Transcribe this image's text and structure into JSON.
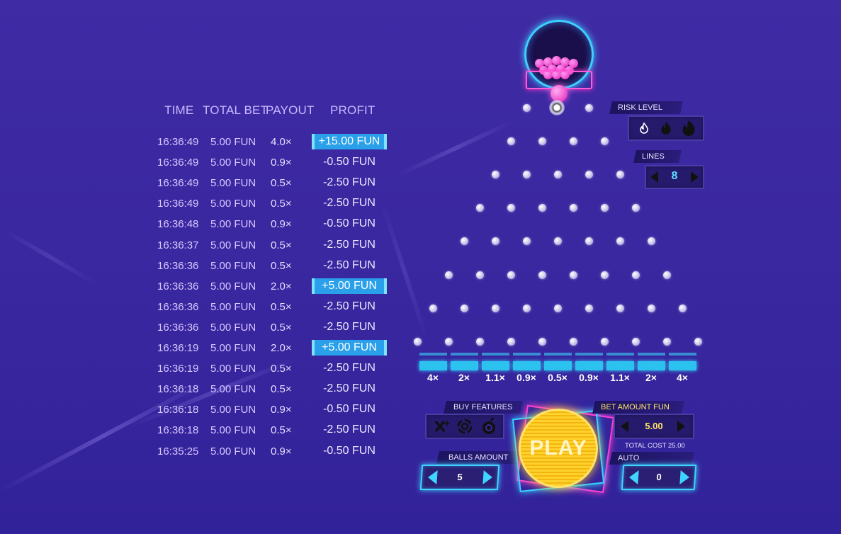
{
  "history": {
    "headers": {
      "time": "TIME",
      "total_bet": "TOTAL BET",
      "payout": "PAYOUT",
      "profit": "PROFIT"
    },
    "rows": [
      {
        "time": "16:36:49",
        "bet": "5.00 FUN",
        "payout": "4.0×",
        "profit": "+15.00 FUN",
        "win": true
      },
      {
        "time": "16:36:49",
        "bet": "5.00 FUN",
        "payout": "0.9×",
        "profit": "-0.50 FUN",
        "win": false
      },
      {
        "time": "16:36:49",
        "bet": "5.00 FUN",
        "payout": "0.5×",
        "profit": "-2.50 FUN",
        "win": false
      },
      {
        "time": "16:36:49",
        "bet": "5.00 FUN",
        "payout": "0.5×",
        "profit": "-2.50 FUN",
        "win": false
      },
      {
        "time": "16:36:48",
        "bet": "5.00 FUN",
        "payout": "0.9×",
        "profit": "-0.50 FUN",
        "win": false
      },
      {
        "time": "16:36:37",
        "bet": "5.00 FUN",
        "payout": "0.5×",
        "profit": "-2.50 FUN",
        "win": false
      },
      {
        "time": "16:36:36",
        "bet": "5.00 FUN",
        "payout": "0.5×",
        "profit": "-2.50 FUN",
        "win": false
      },
      {
        "time": "16:36:36",
        "bet": "5.00 FUN",
        "payout": "2.0×",
        "profit": "+5.00 FUN",
        "win": true
      },
      {
        "time": "16:36:36",
        "bet": "5.00 FUN",
        "payout": "0.5×",
        "profit": "-2.50 FUN",
        "win": false
      },
      {
        "time": "16:36:36",
        "bet": "5.00 FUN",
        "payout": "0.5×",
        "profit": "-2.50 FUN",
        "win": false
      },
      {
        "time": "16:36:19",
        "bet": "5.00 FUN",
        "payout": "2.0×",
        "profit": "+5.00 FUN",
        "win": true
      },
      {
        "time": "16:36:19",
        "bet": "5.00 FUN",
        "payout": "0.5×",
        "profit": "-2.50 FUN",
        "win": false
      },
      {
        "time": "16:36:18",
        "bet": "5.00 FUN",
        "payout": "0.5×",
        "profit": "-2.50 FUN",
        "win": false
      },
      {
        "time": "16:36:18",
        "bet": "5.00 FUN",
        "payout": "0.9×",
        "profit": "-0.50 FUN",
        "win": false
      },
      {
        "time": "16:36:18",
        "bet": "5.00 FUN",
        "payout": "0.5×",
        "profit": "-2.50 FUN",
        "win": false
      },
      {
        "time": "16:35:25",
        "bet": "5.00 FUN",
        "payout": "0.9×",
        "profit": "-0.50 FUN",
        "win": false
      }
    ]
  },
  "board": {
    "rows": 8,
    "multipliers": [
      "4×",
      "2×",
      "1.1×",
      "0.9×",
      "0.5×",
      "0.9×",
      "1.1×",
      "2×",
      "4×"
    ]
  },
  "controls": {
    "risk_level_label": "RISK LEVEL",
    "risk_icons": [
      "flame-low-icon",
      "flame-medium-icon",
      "flame-high-icon"
    ],
    "lines_label": "LINES",
    "lines_value": "8",
    "buy_features_label": "BUY FEATURES",
    "feature_icons": [
      "sparkle-cross-icon",
      "vortex-icon",
      "bomb-icon"
    ],
    "bet_amount_label": "BET AMOUNT FUN",
    "bet_amount_value": "5.00",
    "total_cost": "TOTAL COST 25.00",
    "balls_amount_label": "BALLS AMOUNT",
    "balls_amount_value": "5",
    "auto_label": "AUTO",
    "auto_value": "0",
    "play_label": "PLAY"
  },
  "colors": {
    "accent_cyan": "#3fd4ff",
    "accent_pink": "#ff3fd0",
    "play_yellow": "#ffd12c",
    "win_highlight": "#2ba0ea"
  }
}
